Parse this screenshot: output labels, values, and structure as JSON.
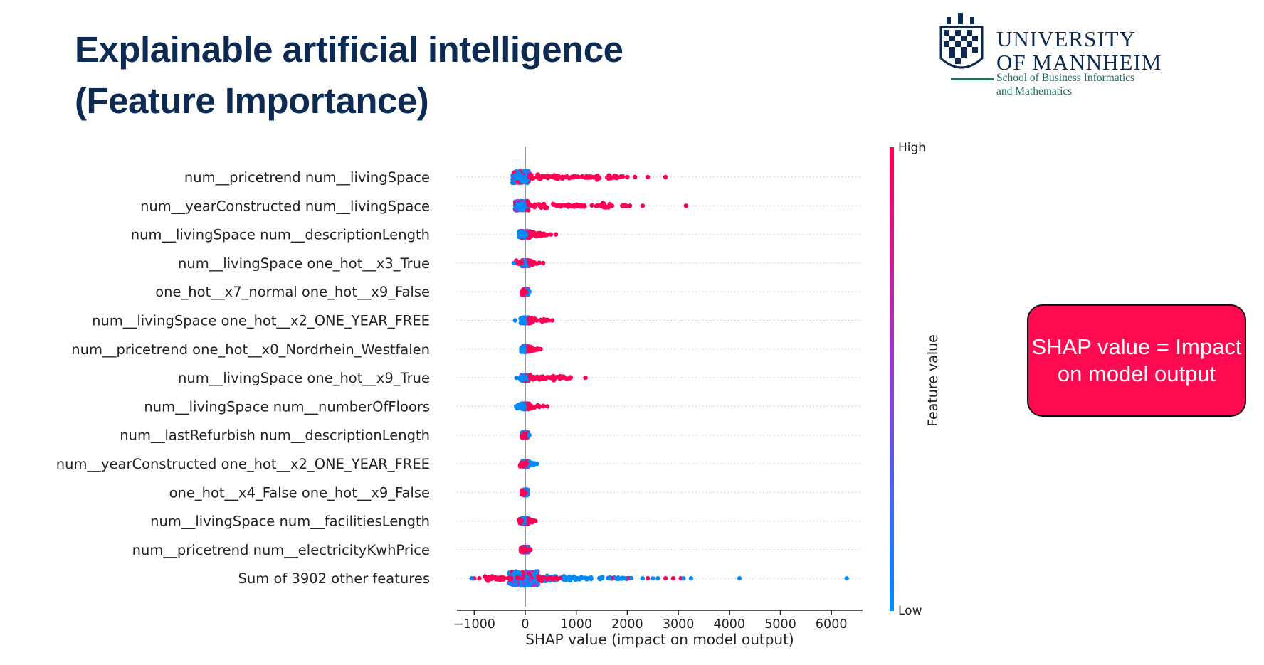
{
  "slide": {
    "title_line1": "Explainable artificial intelligence",
    "title_line2": "(Feature Importance)"
  },
  "logo": {
    "line1": "UNIVERSITY",
    "line2": "OF MANNHEIM",
    "line3": "School of Business Informatics",
    "line4": "and Mathematics"
  },
  "callout": {
    "text": "SHAP value = Impact on model output"
  },
  "colors": {
    "title": "#0d2a52",
    "high": "#ff0052",
    "low": "#008bfb",
    "callout": "#ff0a50"
  },
  "chart_data": {
    "type": "scatter",
    "subtype": "shap-beeswarm",
    "xlabel": "SHAP value (impact on model output)",
    "xticks": [
      -1000,
      0,
      1000,
      2000,
      3000,
      4000,
      5000,
      6000
    ],
    "xlim": [
      -1350,
      6650
    ],
    "colorbar": {
      "label": "Feature value",
      "high": "High",
      "low": "Low"
    },
    "grid": false,
    "features": [
      {
        "name": "num__pricetrend num__livingSpace",
        "core": [
          -250,
          80
        ],
        "high": [
          [
            80,
            1400,
            0.6
          ],
          [
            1400,
            2000,
            0.25
          ]
        ],
        "low": [
          [
            -160,
            60,
            1
          ]
        ],
        "outliers_high": [
          2000,
          2150,
          2400,
          2750
        ],
        "outliers_low": []
      },
      {
        "name": "num__yearConstructed num__livingSpace",
        "core": [
          -200,
          60
        ],
        "high": [
          [
            60,
            1500,
            0.5
          ],
          [
            1500,
            2000,
            0.2
          ]
        ],
        "low": [
          [
            -160,
            50,
            1
          ]
        ],
        "outliers_high": [
          1700,
          1900,
          2050,
          2300,
          3150
        ],
        "outliers_low": []
      },
      {
        "name": "num__livingSpace num__descriptionLength",
        "core": [
          -100,
          90
        ],
        "high": [
          [
            90,
            450,
            0.6
          ]
        ],
        "low": [
          [
            -120,
            30,
            1
          ]
        ],
        "outliers_high": [
          500,
          600
        ],
        "outliers_low": []
      },
      {
        "name": "num__livingSpace one_hot__x3_True",
        "core": [
          -80,
          80
        ],
        "high": [
          [
            80,
            280,
            0.5
          ],
          [
            -180,
            -60,
            0.25
          ]
        ],
        "low": [
          [
            -60,
            60,
            1
          ]
        ],
        "outliers_high": [
          350
        ],
        "outliers_low": [
          -220
        ]
      },
      {
        "name": "one_hot__x7_normal one_hot__x9_False",
        "core": [
          -40,
          60
        ],
        "high": [
          [
            -70,
            20,
            1
          ]
        ],
        "low": [
          [
            20,
            80,
            1
          ]
        ],
        "outliers_high": [],
        "outliers_low": []
      },
      {
        "name": "num__livingSpace one_hot__x2_ONE_YEAR_FREE",
        "core": [
          -60,
          70
        ],
        "high": [
          [
            70,
            480,
            0.5
          ]
        ],
        "low": [
          [
            -90,
            40,
            1
          ]
        ],
        "outliers_high": [
          530
        ],
        "outliers_low": [
          -200
        ]
      },
      {
        "name": "num__pricetrend one_hot__x0_Nordrhein_Westfalen",
        "core": [
          -50,
          60
        ],
        "high": [
          [
            60,
            280,
            0.6
          ]
        ],
        "low": [
          [
            -80,
            40,
            1
          ]
        ],
        "outliers_high": [
          300
        ],
        "outliers_low": []
      },
      {
        "name": "num__livingSpace one_hot__x9_True",
        "core": [
          -70,
          80
        ],
        "high": [
          [
            80,
            550,
            0.5
          ],
          [
            550,
            900,
            0.2
          ]
        ],
        "low": [
          [
            -110,
            40,
            1
          ]
        ],
        "outliers_high": [
          1180
        ],
        "outliers_low": [
          -170
        ]
      },
      {
        "name": "num__livingSpace num__numberOfFloors",
        "core": [
          -70,
          60
        ],
        "high": [
          [
            60,
            380,
            0.5
          ]
        ],
        "low": [
          [
            -160,
            40,
            1
          ]
        ],
        "outliers_high": [
          430
        ],
        "outliers_low": [
          -180
        ]
      },
      {
        "name": "num__lastRefurbish num__descriptionLength",
        "core": [
          -60,
          50
        ],
        "high": [
          [
            -70,
            30,
            0.5
          ]
        ],
        "low": [
          [
            -40,
            60,
            1
          ]
        ],
        "outliers_high": [],
        "outliers_low": [
          80
        ]
      },
      {
        "name": "num__yearConstructed one_hot__x2_ONE_YEAR_FREE",
        "core": [
          -60,
          60
        ],
        "high": [
          [
            -100,
            40,
            0.6
          ]
        ],
        "low": [
          [
            40,
            200,
            1
          ]
        ],
        "outliers_high": [],
        "outliers_low": [
          230
        ]
      },
      {
        "name": "one_hot__x4_False one_hot__x9_False",
        "core": [
          -40,
          50
        ],
        "high": [
          [
            -70,
            20,
            1
          ]
        ],
        "low": [
          [
            20,
            60,
            1
          ]
        ],
        "outliers_high": [],
        "outliers_low": []
      },
      {
        "name": "num__livingSpace num__facilitiesLength",
        "core": [
          -70,
          60
        ],
        "high": [
          [
            60,
            180,
            0.5
          ],
          [
            -120,
            -60,
            0.3
          ]
        ],
        "low": [
          [
            -80,
            50,
            1
          ]
        ],
        "outliers_high": [
          200
        ],
        "outliers_low": []
      },
      {
        "name": "num__pricetrend num__electricityKwhPrice",
        "core": [
          -60,
          70
        ],
        "high": [
          [
            -100,
            120,
            0.7
          ]
        ],
        "low": [
          [
            -60,
            60,
            1
          ]
        ],
        "outliers_high": [],
        "outliers_low": []
      },
      {
        "name": "Sum of 3902 other features",
        "core": [
          -320,
          260
        ],
        "high": [
          [
            -800,
            -250,
            0.6
          ],
          [
            250,
            700,
            0.25
          ]
        ],
        "low": [
          [
            260,
            2100,
            0.8
          ]
        ],
        "outliers_high": [
          -1000,
          -900,
          1700,
          2000,
          2400,
          2750,
          2900,
          3050
        ],
        "outliers_low": [
          -1050,
          1650,
          1950,
          2300,
          2500,
          2600,
          3100,
          3250,
          4200,
          6300
        ]
      }
    ]
  }
}
